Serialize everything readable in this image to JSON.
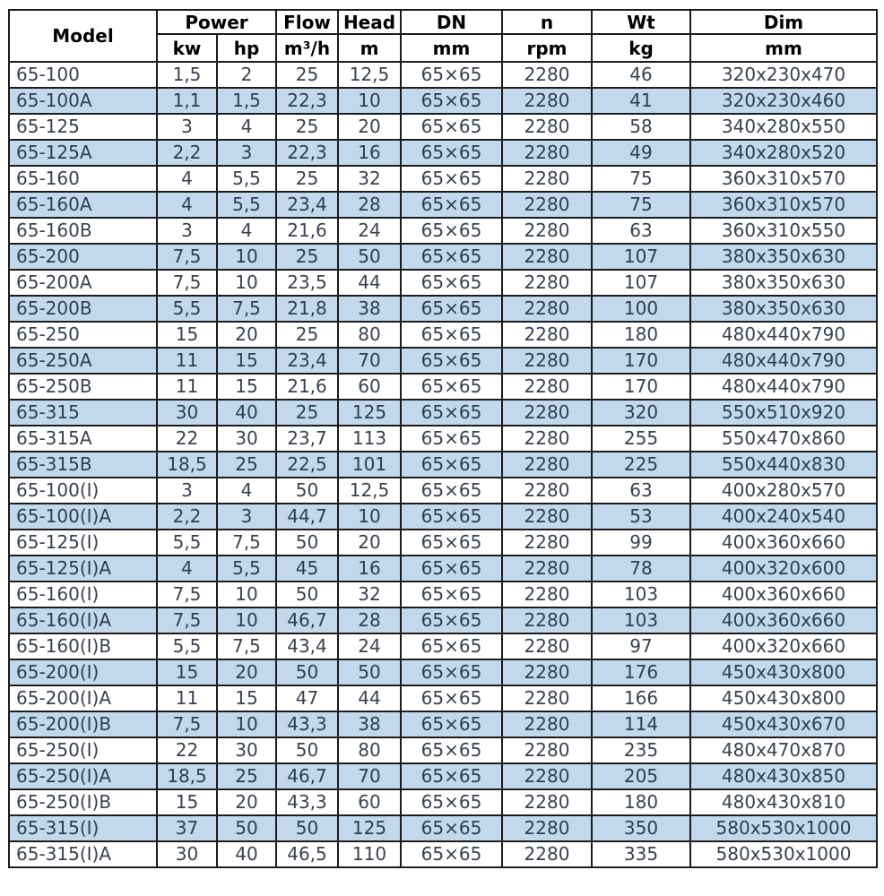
{
  "table": {
    "colors": {
      "stripe": "#c2d8ec",
      "border": "#1c1c1c",
      "header_text": "#000000",
      "data_text": "#39424d"
    },
    "headers": {
      "model": "Model",
      "power": "Power",
      "kw": "kw",
      "hp": "hp",
      "flow": "Flow",
      "flow_unit": "m³/h",
      "head": "Head",
      "head_unit": "m",
      "dn": "DN",
      "dn_unit": "mm",
      "n": "n",
      "n_unit": "rpm",
      "wt": "Wt",
      "wt_unit": "kg",
      "dim": "Dim",
      "dim_unit": "mm"
    },
    "column_keys": [
      "model",
      "kw",
      "hp",
      "flow",
      "head",
      "dn",
      "rpm",
      "wt",
      "dim"
    ],
    "rows": [
      {
        "model": "65-100",
        "kw": "1,5",
        "hp": "2",
        "flow": "25",
        "head": "12,5",
        "dn": "65×65",
        "rpm": "2280",
        "wt": "46",
        "dim": "320x230x470"
      },
      {
        "model": "65-100A",
        "kw": "1,1",
        "hp": "1,5",
        "flow": "22,3",
        "head": "10",
        "dn": "65×65",
        "rpm": "2280",
        "wt": "41",
        "dim": "320x230x460"
      },
      {
        "model": "65-125",
        "kw": "3",
        "hp": "4",
        "flow": "25",
        "head": "20",
        "dn": "65×65",
        "rpm": "2280",
        "wt": "58",
        "dim": "340x280x550"
      },
      {
        "model": "65-125A",
        "kw": "2,2",
        "hp": "3",
        "flow": "22,3",
        "head": "16",
        "dn": "65×65",
        "rpm": "2280",
        "wt": "49",
        "dim": "340x280x520"
      },
      {
        "model": "65-160",
        "kw": "4",
        "hp": "5,5",
        "flow": "25",
        "head": "32",
        "dn": "65×65",
        "rpm": "2280",
        "wt": "75",
        "dim": "360x310x570"
      },
      {
        "model": "65-160A",
        "kw": "4",
        "hp": "5,5",
        "flow": "23,4",
        "head": "28",
        "dn": "65×65",
        "rpm": "2280",
        "wt": "75",
        "dim": "360x310x570"
      },
      {
        "model": "65-160B",
        "kw": "3",
        "hp": "4",
        "flow": "21,6",
        "head": "24",
        "dn": "65×65",
        "rpm": "2280",
        "wt": "63",
        "dim": "360x310x550"
      },
      {
        "model": "65-200",
        "kw": "7,5",
        "hp": "10",
        "flow": "25",
        "head": "50",
        "dn": "65×65",
        "rpm": "2280",
        "wt": "107",
        "dim": "380x350x630"
      },
      {
        "model": "65-200A",
        "kw": "7,5",
        "hp": "10",
        "flow": "23,5",
        "head": "44",
        "dn": "65×65",
        "rpm": "2280",
        "wt": "107",
        "dim": "380x350x630"
      },
      {
        "model": "65-200B",
        "kw": "5,5",
        "hp": "7,5",
        "flow": "21,8",
        "head": "38",
        "dn": "65×65",
        "rpm": "2280",
        "wt": "100",
        "dim": "380x350x630"
      },
      {
        "model": "65-250",
        "kw": "15",
        "hp": "20",
        "flow": "25",
        "head": "80",
        "dn": "65×65",
        "rpm": "2280",
        "wt": "180",
        "dim": "480x440x790"
      },
      {
        "model": "65-250A",
        "kw": "11",
        "hp": "15",
        "flow": "23,4",
        "head": "70",
        "dn": "65×65",
        "rpm": "2280",
        "wt": "170",
        "dim": "480x440x790"
      },
      {
        "model": "65-250B",
        "kw": "11",
        "hp": "15",
        "flow": "21,6",
        "head": "60",
        "dn": "65×65",
        "rpm": "2280",
        "wt": "170",
        "dim": "480x440x790"
      },
      {
        "model": "65-315",
        "kw": "30",
        "hp": "40",
        "flow": "25",
        "head": "125",
        "dn": "65×65",
        "rpm": "2280",
        "wt": "320",
        "dim": "550x510x920"
      },
      {
        "model": "65-315A",
        "kw": "22",
        "hp": "30",
        "flow": "23,7",
        "head": "113",
        "dn": "65×65",
        "rpm": "2280",
        "wt": "255",
        "dim": "550x470x860"
      },
      {
        "model": "65-315B",
        "kw": "18,5",
        "hp": "25",
        "flow": "22,5",
        "head": "101",
        "dn": "65×65",
        "rpm": "2280",
        "wt": "225",
        "dim": "550x440x830"
      },
      {
        "model": "65-100(I)",
        "kw": "3",
        "hp": "4",
        "flow": "50",
        "head": "12,5",
        "dn": "65×65",
        "rpm": "2280",
        "wt": "63",
        "dim": "400x280x570"
      },
      {
        "model": "65-100(I)A",
        "kw": "2,2",
        "hp": "3",
        "flow": "44,7",
        "head": "10",
        "dn": "65×65",
        "rpm": "2280",
        "wt": "53",
        "dim": "400x240x540"
      },
      {
        "model": "65-125(I)",
        "kw": "5,5",
        "hp": "7,5",
        "flow": "50",
        "head": "20",
        "dn": "65×65",
        "rpm": "2280",
        "wt": "99",
        "dim": "400x360x660"
      },
      {
        "model": "65-125(I)A",
        "kw": "4",
        "hp": "5,5",
        "flow": "45",
        "head": "16",
        "dn": "65×65",
        "rpm": "2280",
        "wt": "78",
        "dim": "400x320x600"
      },
      {
        "model": "65-160(I)",
        "kw": "7,5",
        "hp": "10",
        "flow": "50",
        "head": "32",
        "dn": "65×65",
        "rpm": "2280",
        "wt": "103",
        "dim": "400x360x660"
      },
      {
        "model": "65-160(I)A",
        "kw": "7,5",
        "hp": "10",
        "flow": "46,7",
        "head": "28",
        "dn": "65×65",
        "rpm": "2280",
        "wt": "103",
        "dim": "400x360x660"
      },
      {
        "model": "65-160(I)B",
        "kw": "5,5",
        "hp": "7,5",
        "flow": "43,4",
        "head": "24",
        "dn": "65×65",
        "rpm": "2280",
        "wt": "97",
        "dim": "400x320x660"
      },
      {
        "model": "65-200(I)",
        "kw": "15",
        "hp": "20",
        "flow": "50",
        "head": "50",
        "dn": "65×65",
        "rpm": "2280",
        "wt": "176",
        "dim": "450x430x800"
      },
      {
        "model": "65-200(I)A",
        "kw": "11",
        "hp": "15",
        "flow": "47",
        "head": "44",
        "dn": "65×65",
        "rpm": "2280",
        "wt": "166",
        "dim": "450x430x800"
      },
      {
        "model": "65-200(I)B",
        "kw": "7,5",
        "hp": "10",
        "flow": "43,3",
        "head": "38",
        "dn": "65×65",
        "rpm": "2280",
        "wt": "114",
        "dim": "450x430x670"
      },
      {
        "model": "65-250(I)",
        "kw": "22",
        "hp": "30",
        "flow": "50",
        "head": "80",
        "dn": "65×65",
        "rpm": "2280",
        "wt": "235",
        "dim": "480x470x870"
      },
      {
        "model": "65-250(I)A",
        "kw": "18,5",
        "hp": "25",
        "flow": "46,7",
        "head": "70",
        "dn": "65×65",
        "rpm": "2280",
        "wt": "205",
        "dim": "480x430x850"
      },
      {
        "model": "65-250(I)B",
        "kw": "15",
        "hp": "20",
        "flow": "43,3",
        "head": "60",
        "dn": "65×65",
        "rpm": "2280",
        "wt": "180",
        "dim": "480x430x810"
      },
      {
        "model": "65-315(I)",
        "kw": "37",
        "hp": "50",
        "flow": "50",
        "head": "125",
        "dn": "65×65",
        "rpm": "2280",
        "wt": "350",
        "dim": "580x530x1000"
      },
      {
        "model": "65-315(I)A",
        "kw": "30",
        "hp": "40",
        "flow": "46,5",
        "head": "110",
        "dn": "65×65",
        "rpm": "2280",
        "wt": "335",
        "dim": "580x530x1000"
      }
    ]
  }
}
